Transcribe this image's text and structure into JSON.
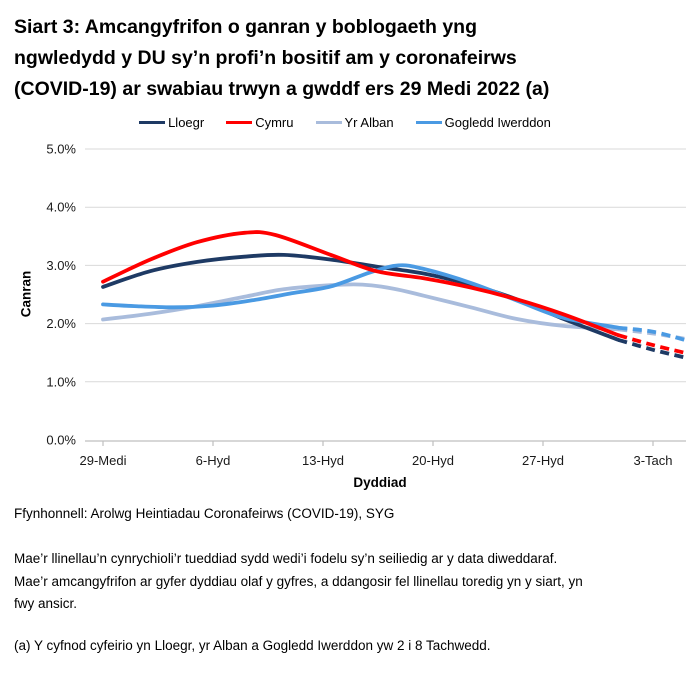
{
  "title": {
    "full": "Siart 3: Amcangyfrifon o ganran y boblogaeth yng ngwledydd y DU sy’n profi’n bositif am y coronafeirws (COVID-19) ar swabiau trwyn a gwddf ers 29 Medi 2022 (a)",
    "lines": [
      "Siart 3: Amcangyfrifon o ganran y boblogaeth yng",
      "ngwledydd y DU sy’n profi’n bositif am y coronafeirws",
      "(COVID-19) ar swabiau trwyn a gwddf ers 29 Medi 2022 (a)"
    ]
  },
  "legend": [
    {
      "label": "Lloegr",
      "color": "#1E3A64"
    },
    {
      "label": "Cymru",
      "color": "#FF0000"
    },
    {
      "label": "Yr Alban",
      "color": "#A9BCDC"
    },
    {
      "label": "Gogledd Iwerddon",
      "color": "#4A9AE3"
    }
  ],
  "chart_data": {
    "type": "line",
    "title": "Siart 3: Amcangyfrifon o ganran y boblogaeth yng ngwledydd y DU sy’n profi’n bositif am y coronafeirws (COVID-19) ar swabiau trwyn a gwddf ers 29 Medi 2022 (a)",
    "xlabel": "Dyddiad",
    "ylabel": "Canran",
    "ylim": [
      0,
      5
    ],
    "y_ticks": [
      "0.0%",
      "1.0%",
      "2.0%",
      "3.0%",
      "4.0%",
      "5.0%"
    ],
    "x_tick_labels": [
      "29-Medi",
      "6-Hyd",
      "13-Hyd",
      "20-Hyd",
      "27-Hyd",
      "3-Tach"
    ],
    "x_tick_days": [
      0,
      7,
      14,
      21,
      28,
      35
    ],
    "x_unit": "dyddiau ers 29 Medi 2022",
    "grid": "horizontal",
    "legend_position": "top",
    "dashed_tail_meaning": "llinellau toredig = amcangyfrifon mwy ansicr ar gyfer dyddiau olaf y gyfres",
    "series": [
      {
        "name": "Lloegr",
        "color": "#1E3A64",
        "solid": [
          [
            0,
            2.63
          ],
          [
            3,
            2.9
          ],
          [
            6,
            3.06
          ],
          [
            9,
            3.15
          ],
          [
            11.5,
            3.18
          ],
          [
            14.5,
            3.1
          ],
          [
            17.4,
            2.98
          ],
          [
            20.4,
            2.86
          ],
          [
            23.4,
            2.67
          ],
          [
            26.3,
            2.42
          ],
          [
            29.3,
            2.08
          ],
          [
            32.8,
            1.72
          ]
        ],
        "dashed": [
          [
            32.8,
            1.72
          ],
          [
            35,
            1.55
          ],
          [
            37,
            1.42
          ]
        ]
      },
      {
        "name": "Cymru",
        "color": "#FF0000",
        "solid": [
          [
            0,
            2.72
          ],
          [
            3,
            3.1
          ],
          [
            6,
            3.4
          ],
          [
            9,
            3.56
          ],
          [
            11,
            3.52
          ],
          [
            14.5,
            3.18
          ],
          [
            17.4,
            2.9
          ],
          [
            20.4,
            2.78
          ],
          [
            23.4,
            2.62
          ],
          [
            26.3,
            2.42
          ],
          [
            29.3,
            2.16
          ],
          [
            32.8,
            1.8
          ]
        ],
        "dashed": [
          [
            32.8,
            1.8
          ],
          [
            35,
            1.63
          ],
          [
            37,
            1.5
          ]
        ]
      },
      {
        "name": "Yr Alban",
        "color": "#A9BCDC",
        "solid": [
          [
            0,
            2.07
          ],
          [
            3,
            2.17
          ],
          [
            6,
            2.3
          ],
          [
            9,
            2.46
          ],
          [
            11.5,
            2.59
          ],
          [
            14.5,
            2.66
          ],
          [
            16.5,
            2.67
          ],
          [
            18.5,
            2.6
          ],
          [
            20.4,
            2.48
          ],
          [
            23.4,
            2.28
          ],
          [
            26.3,
            2.08
          ],
          [
            29.3,
            1.96
          ],
          [
            32.8,
            1.9
          ]
        ],
        "dashed": [
          [
            32.8,
            1.9
          ],
          [
            35,
            1.83
          ],
          [
            37,
            1.74
          ]
        ]
      },
      {
        "name": "Gogledd Iwerddon",
        "color": "#4A9AE3",
        "solid": [
          [
            0,
            2.33
          ],
          [
            2,
            2.3
          ],
          [
            4.5,
            2.28
          ],
          [
            7,
            2.31
          ],
          [
            9.5,
            2.4
          ],
          [
            12,
            2.52
          ],
          [
            14.5,
            2.64
          ],
          [
            17,
            2.88
          ],
          [
            18.8,
            3.0
          ],
          [
            20.4,
            2.94
          ],
          [
            23.4,
            2.7
          ],
          [
            26.3,
            2.4
          ],
          [
            29.3,
            2.1
          ],
          [
            32.8,
            1.93
          ]
        ],
        "dashed": [
          [
            32.8,
            1.93
          ],
          [
            35,
            1.86
          ],
          [
            37,
            1.72
          ]
        ]
      }
    ]
  },
  "footnotes": {
    "source": "Ffynhonnell: Arolwg Heintiadau Coronafeirws (COVID-19), SYG",
    "body_lines": [
      "Mae’r llinellau’n cynrychioli’r tueddiad sydd wedi’i fodelu sy’n seiliedig ar y data diweddaraf.",
      "Mae’r amcangyfrifon ar gyfer dyddiau olaf y gyfres, a ddangosir fel llinellau toredig yn y siart, yn",
      "fwy ansicr."
    ],
    "body_full": "Mae’r llinellau’n cynrychioli’r tueddiad sydd wedi’i fodelu sy’n seiliedig ar y data diweddaraf. Mae’r amcangyfrifon ar gyfer dyddiau olaf y gyfres, a ddangosir fel llinellau toredig yn y siart, yn fwy ansicr.",
    "note_a": "(a) Y cyfnod cyfeirio yn Lloegr, yr Alban a Gogledd Iwerddon yw 2 i 8 Tachwedd."
  }
}
